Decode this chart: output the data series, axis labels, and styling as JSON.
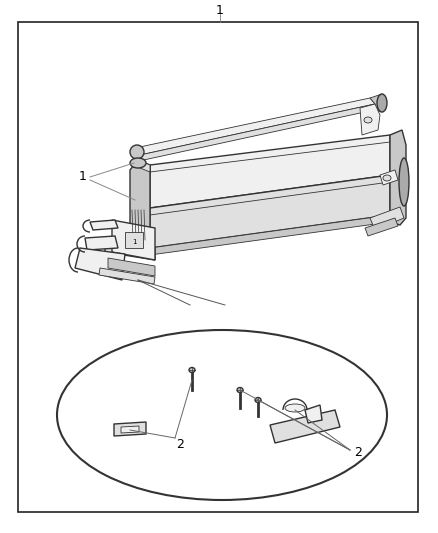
{
  "bg_color": "#ffffff",
  "border_color": "#333333",
  "fig_width": 4.38,
  "fig_height": 5.33,
  "dpi": 100,
  "lw_main": 1.0,
  "lw_thin": 0.6,
  "stroke": "#333333",
  "fill_light": "#f0f0f0",
  "fill_mid": "#e0e0e0",
  "fill_dark": "#c8c8c8",
  "fill_vdark": "#aaaaaa"
}
